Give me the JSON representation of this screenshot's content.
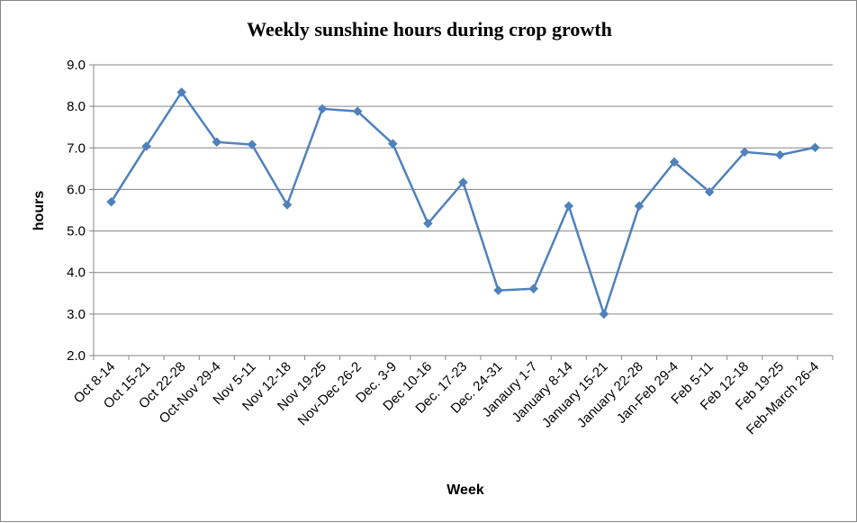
{
  "chart_data": {
    "type": "line",
    "title": "Weekly  sunshine hours during crop growth",
    "xlabel": "Week",
    "ylabel": "hours",
    "ylim": [
      2.0,
      9.0
    ],
    "yticks": [
      "2.0",
      "3.0",
      "4.0",
      "5.0",
      "6.0",
      "7.0",
      "8.0",
      "9.0"
    ],
    "grid": true,
    "legend": "none",
    "categories": [
      "Oct 8-14",
      "Oct 15-21",
      "Oct 22-28",
      "Oct-Nov 29-4",
      "Nov 5-11",
      "Nov 12-18",
      "Nov 19-25",
      "Nov-Dec 26-2",
      "Dec. 3-9",
      "Dec 10-16",
      "Dec. 17-23",
      "Dec. 24-31",
      "Janaury 1-7",
      "January 8-14",
      "January 15-21",
      "January 22-28",
      "Jan-Feb 29-4",
      "Feb 5-11",
      "Feb 12-18",
      "Feb 19-25",
      "Feb-March 26-4"
    ],
    "series": [
      {
        "values": [
          5.7,
          7.04,
          8.34,
          7.14,
          7.08,
          5.63,
          7.94,
          7.88,
          7.1,
          5.18,
          6.17,
          3.57,
          3.61,
          5.6,
          3.0,
          5.6,
          6.66,
          5.94,
          6.9,
          6.83,
          7.01
        ],
        "color": "#4f81bd"
      }
    ]
  }
}
